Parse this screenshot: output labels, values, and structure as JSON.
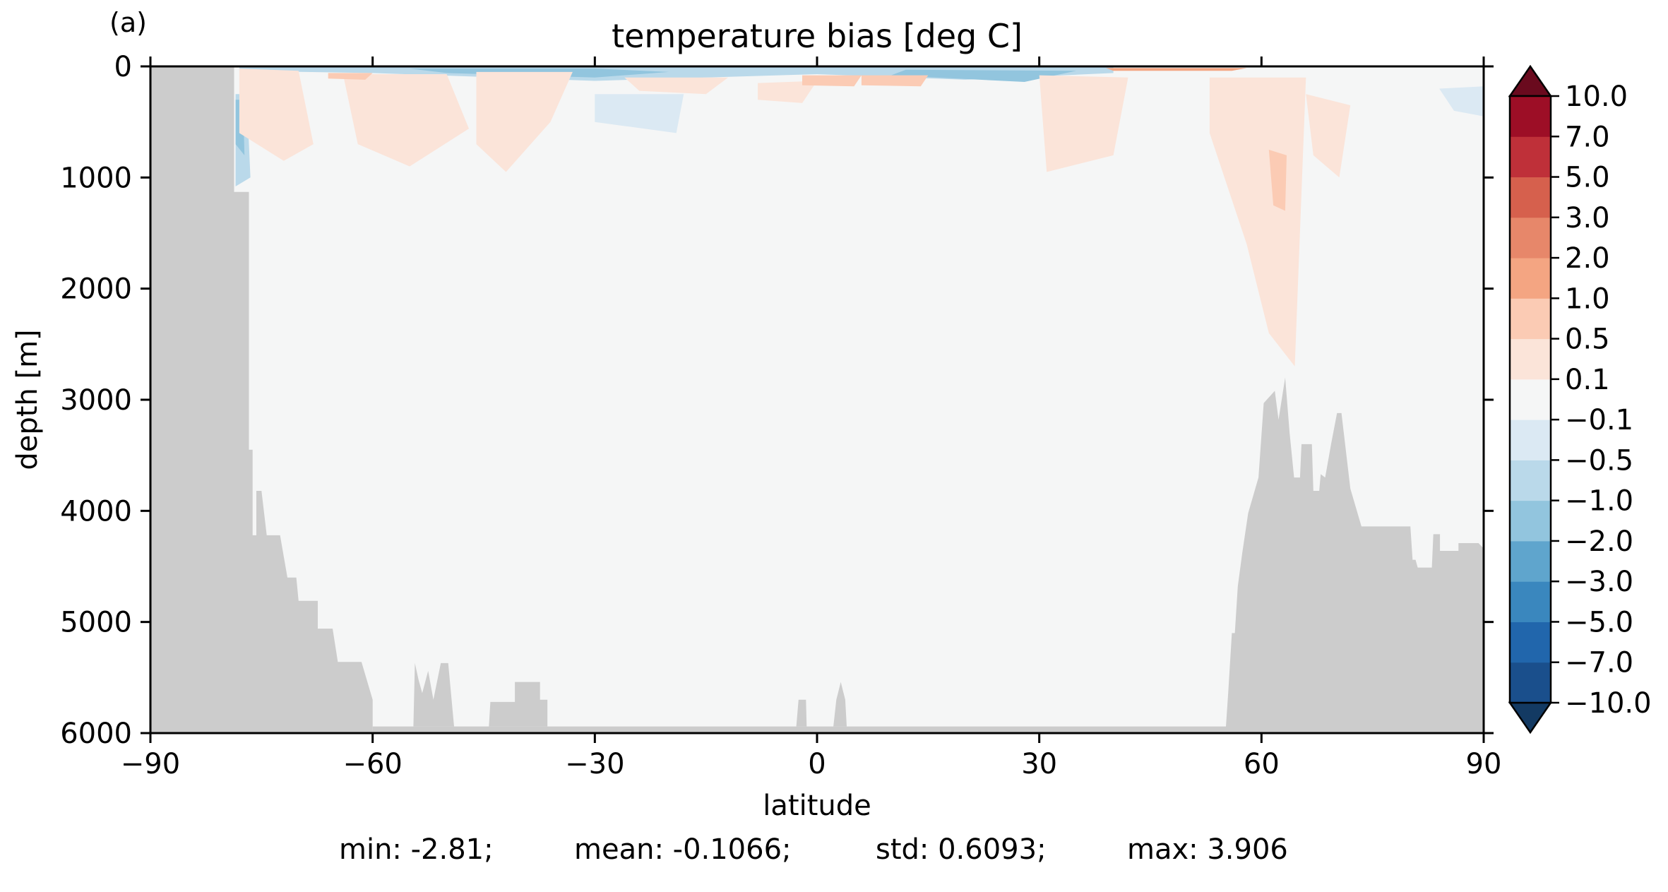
{
  "panel_label": "(a)",
  "chart_data": {
    "type": "heatmap",
    "title": "temperature bias [deg C]",
    "xlabel": "latitude",
    "ylabel": "depth [m]",
    "xlim": [
      -90,
      90
    ],
    "ylim": [
      6000,
      0
    ],
    "xticks": [
      -90,
      -60,
      -30,
      0,
      30,
      60,
      90
    ],
    "xtick_labels": [
      "−90",
      "−60",
      "−30",
      "0",
      "30",
      "60",
      "90"
    ],
    "yticks": [
      0,
      1000,
      2000,
      3000,
      4000,
      5000,
      6000
    ],
    "ytick_labels": [
      "0",
      "1000",
      "2000",
      "3000",
      "4000",
      "5000",
      "6000"
    ],
    "grid": false,
    "colorbar": {
      "levels": [
        -10,
        -7,
        -5,
        -3,
        -2,
        -1,
        -0.5,
        -0.1,
        0.1,
        0.5,
        1,
        2,
        3,
        5,
        7,
        10
      ],
      "labels": [
        "−10.0",
        "−7.0",
        "−5.0",
        "−3.0",
        "−2.0",
        "−1.0",
        "−0.5",
        "−0.1",
        "0.1",
        "0.5",
        "1.0",
        "2.0",
        "3.0",
        "5.0",
        "7.0",
        "10.0"
      ],
      "colors": [
        "#1a4f8c",
        "#2166ac",
        "#3a87be",
        "#5fa5cd",
        "#92c5de",
        "#bad9ea",
        "#dbe9f3",
        "#f5f6f6",
        "#fbe4d9",
        "#fbcbb4",
        "#f4a582",
        "#e7876a",
        "#d6604d",
        "#bf3039",
        "#9d0e26"
      ],
      "under_color": "#133a63",
      "over_color": "#6a0a1e",
      "extend": "both"
    },
    "land_color": "#cccccc",
    "background_color": "#f5f6f6",
    "bathymetry": {
      "south": [
        [
          -90,
          0
        ],
        [
          -78.7,
          0
        ],
        [
          -78.7,
          1130
        ],
        [
          -76.7,
          1130
        ],
        [
          -76.7,
          3450
        ],
        [
          -76.2,
          3450
        ],
        [
          -76.2,
          4220
        ],
        [
          -75.7,
          4220
        ],
        [
          -75.7,
          3820
        ],
        [
          -75.0,
          3820
        ],
        [
          -74.3,
          4220
        ],
        [
          -72.5,
          4220
        ],
        [
          -71.5,
          4600
        ],
        [
          -70.3,
          4600
        ],
        [
          -70.0,
          4810
        ],
        [
          -67.4,
          4810
        ],
        [
          -67.4,
          5060
        ],
        [
          -65.4,
          5060
        ],
        [
          -64.7,
          5360
        ],
        [
          -61.5,
          5360
        ],
        [
          -60.0,
          5700
        ],
        [
          -60.0,
          5940
        ]
      ],
      "southeast_seamounts": [
        [
          [
            -54.5,
            5940
          ],
          [
            -54.3,
            5370
          ],
          [
            -53.8,
            5520
          ],
          [
            -53.3,
            5640
          ],
          [
            -52.5,
            5440
          ],
          [
            -51.8,
            5700
          ],
          [
            -50.8,
            5370
          ],
          [
            -49.8,
            5370
          ],
          [
            -49.0,
            5940
          ]
        ],
        [
          [
            -44.3,
            5940
          ],
          [
            -44.1,
            5720
          ],
          [
            -40.8,
            5720
          ],
          [
            -40.8,
            5540
          ],
          [
            -37.4,
            5540
          ],
          [
            -37.4,
            5700
          ],
          [
            -36.4,
            5700
          ],
          [
            -36.4,
            5940
          ]
        ],
        [
          [
            -2.8,
            5940
          ],
          [
            -2.5,
            5700
          ],
          [
            -1.5,
            5700
          ],
          [
            -1.4,
            5940
          ]
        ],
        [
          [
            2.2,
            5940
          ],
          [
            2.6,
            5700
          ],
          [
            3.2,
            5540
          ],
          [
            3.8,
            5700
          ],
          [
            4.0,
            5940
          ]
        ]
      ],
      "floor": 5940,
      "north": [
        [
          55.2,
          5940
        ],
        [
          55.5,
          5650
        ],
        [
          56.0,
          5100
        ],
        [
          56.4,
          5100
        ],
        [
          56.8,
          4680
        ],
        [
          57.4,
          4380
        ],
        [
          58.2,
          4020
        ],
        [
          59.6,
          3700
        ],
        [
          60.3,
          3030
        ],
        [
          61.8,
          2920
        ],
        [
          62.3,
          3180
        ],
        [
          63.2,
          2800
        ],
        [
          63.8,
          3300
        ],
        [
          64.4,
          3700
        ],
        [
          65.2,
          3700
        ],
        [
          65.4,
          3400
        ],
        [
          66.8,
          3400
        ],
        [
          67.0,
          3820
        ],
        [
          67.8,
          3820
        ],
        [
          68.0,
          3670
        ],
        [
          68.6,
          3700
        ],
        [
          69.4,
          3400
        ],
        [
          70.2,
          3120
        ],
        [
          70.8,
          3120
        ],
        [
          72.0,
          3800
        ],
        [
          73.5,
          4140
        ],
        [
          80.1,
          4140
        ],
        [
          80.4,
          4440
        ],
        [
          80.8,
          4440
        ],
        [
          81.1,
          4510
        ],
        [
          83.0,
          4510
        ],
        [
          83.2,
          4210
        ],
        [
          84.1,
          4210
        ],
        [
          84.1,
          4360
        ],
        [
          86.6,
          4360
        ],
        [
          86.6,
          4290
        ],
        [
          89.3,
          4290
        ],
        [
          90,
          4340
        ],
        [
          90,
          6000
        ]
      ]
    },
    "bias_patches": [
      {
        "level": -0.5,
        "points": [
          [
            -78,
            0
          ],
          [
            -30,
            0
          ],
          [
            20,
            0
          ],
          [
            40,
            0
          ],
          [
            40,
            60
          ],
          [
            20,
            120
          ],
          [
            0,
            70
          ],
          [
            -30,
            130
          ],
          [
            -60,
            60
          ],
          [
            -78,
            40
          ]
        ]
      },
      {
        "level": -1.0,
        "points": [
          [
            -55,
            20
          ],
          [
            -30,
            20
          ],
          [
            -20,
            50
          ],
          [
            -30,
            100
          ],
          [
            -50,
            60
          ]
        ]
      },
      {
        "level": -1.0,
        "points": [
          [
            12,
            30
          ],
          [
            35,
            40
          ],
          [
            28,
            140
          ],
          [
            10,
            80
          ]
        ]
      },
      {
        "level": -0.5,
        "points": [
          [
            -78.5,
            250
          ],
          [
            -77,
            250
          ],
          [
            -76.5,
            1000
          ],
          [
            -78.5,
            1080
          ]
        ]
      },
      {
        "level": -1.0,
        "points": [
          [
            -78.5,
            300
          ],
          [
            -77.5,
            300
          ],
          [
            -77.3,
            800
          ],
          [
            -78.5,
            700
          ]
        ]
      },
      {
        "level": -0.1,
        "points": [
          [
            -30,
            250
          ],
          [
            -18,
            250
          ],
          [
            -19,
            600
          ],
          [
            -30,
            500
          ]
        ]
      },
      {
        "level": -0.1,
        "points": [
          [
            84,
            200
          ],
          [
            90,
            180
          ],
          [
            90,
            450
          ],
          [
            86,
            400
          ]
        ]
      },
      {
        "level": 0.1,
        "points": [
          [
            -78,
            20
          ],
          [
            -70,
            40
          ],
          [
            -68,
            700
          ],
          [
            -72,
            850
          ],
          [
            -78,
            600
          ]
        ]
      },
      {
        "level": 0.1,
        "points": [
          [
            -64,
            70
          ],
          [
            -50,
            70
          ],
          [
            -47,
            560
          ],
          [
            -55,
            900
          ],
          [
            -62,
            700
          ]
        ]
      },
      {
        "level": 0.1,
        "points": [
          [
            -46,
            50
          ],
          [
            -33,
            50
          ],
          [
            -36,
            500
          ],
          [
            -42,
            950
          ],
          [
            -46,
            700
          ]
        ]
      },
      {
        "level": 0.1,
        "points": [
          [
            -26,
            100
          ],
          [
            -12,
            100
          ],
          [
            -15,
            250
          ],
          [
            -24,
            220
          ]
        ]
      },
      {
        "level": 0.1,
        "points": [
          [
            -8,
            150
          ],
          [
            0,
            130
          ],
          [
            -2,
            330
          ],
          [
            -8,
            300
          ]
        ]
      },
      {
        "level": 0.1,
        "points": [
          [
            30,
            80
          ],
          [
            42,
            100
          ],
          [
            40,
            800
          ],
          [
            31,
            950
          ]
        ]
      },
      {
        "level": 0.1,
        "points": [
          [
            53,
            100
          ],
          [
            66,
            100
          ],
          [
            64.5,
            2700
          ],
          [
            61,
            2400
          ],
          [
            58,
            1600
          ],
          [
            53,
            600
          ]
        ]
      },
      {
        "level": 0.1,
        "points": [
          [
            66,
            250
          ],
          [
            72,
            350
          ],
          [
            70.5,
            1000
          ],
          [
            67,
            800
          ]
        ]
      },
      {
        "level": 0.5,
        "points": [
          [
            -66,
            60
          ],
          [
            -60,
            60
          ],
          [
            -61,
            120
          ],
          [
            -66,
            110
          ]
        ]
      },
      {
        "level": 0.5,
        "points": [
          [
            -2,
            80
          ],
          [
            6,
            80
          ],
          [
            5,
            180
          ],
          [
            -2,
            170
          ]
        ]
      },
      {
        "level": 0.5,
        "points": [
          [
            6,
            80
          ],
          [
            15,
            80
          ],
          [
            14,
            180
          ],
          [
            6,
            170
          ]
        ]
      },
      {
        "level": 0.5,
        "points": [
          [
            61,
            750
          ],
          [
            63.4,
            800
          ],
          [
            63.2,
            1300
          ],
          [
            61.6,
            1250
          ]
        ]
      },
      {
        "level": 1.0,
        "points": [
          [
            39,
            15
          ],
          [
            58,
            15
          ],
          [
            56,
            40
          ],
          [
            40,
            40
          ]
        ]
      }
    ]
  },
  "stats": {
    "min": "min: -2.81;",
    "mean": "mean: -0.1066;",
    "std": "std: 0.6093;",
    "max": "max: 3.906"
  }
}
